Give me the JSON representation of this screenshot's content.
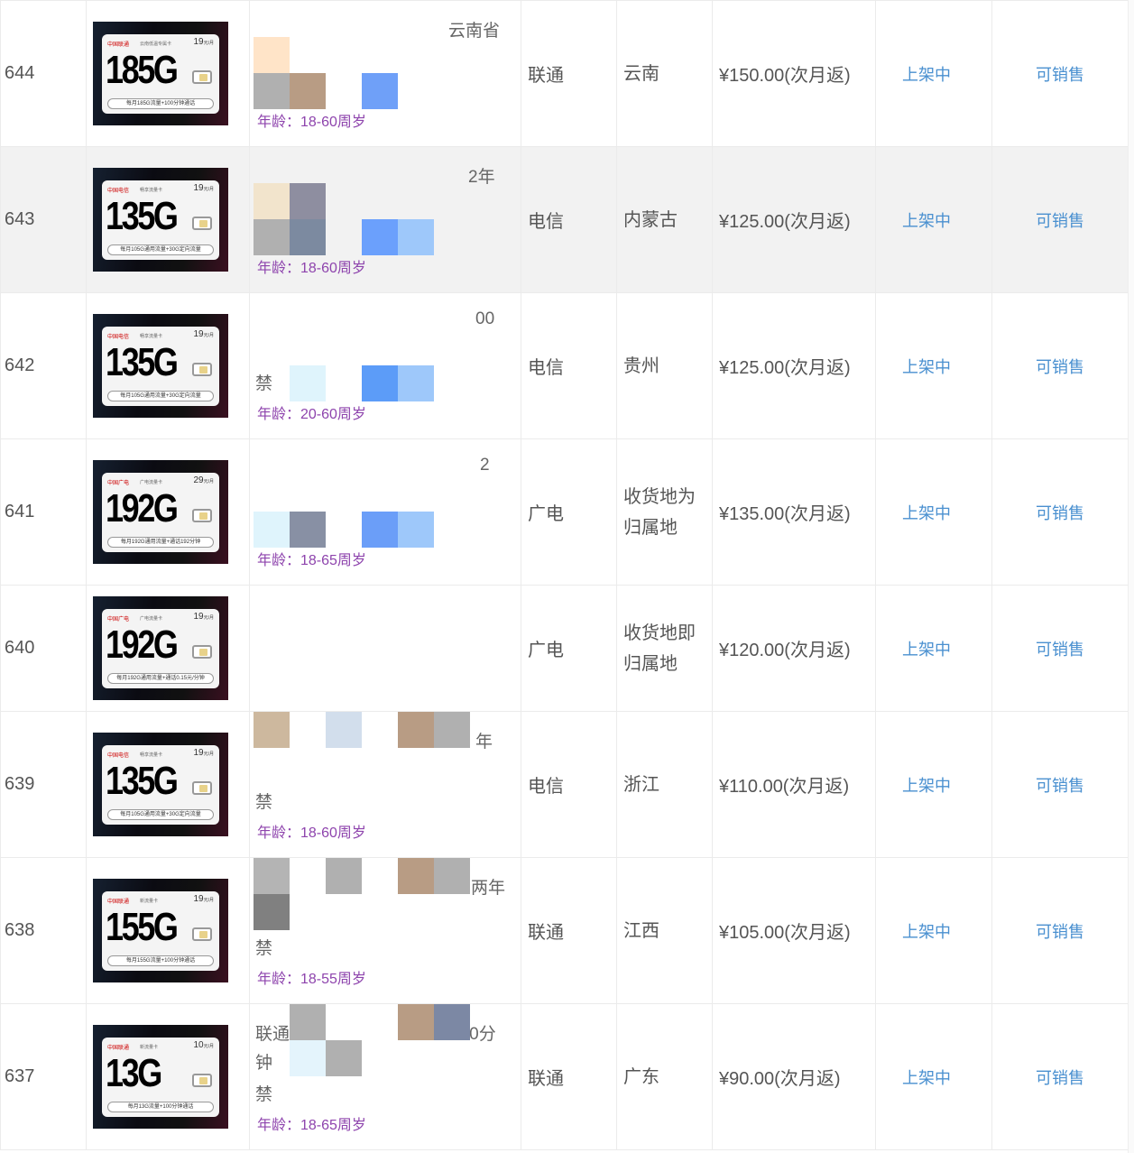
{
  "rows": [
    {
      "id": "644",
      "card": {
        "logo": "中国联通",
        "tag": "云南低温专属卡",
        "fee": "19",
        "unit": "元/月",
        "gb": "185G",
        "footer": "每月185G流量+100分钟通话"
      },
      "desc": {
        "fragments": [
          "云南省"
        ],
        "age": "年龄：18-60周岁"
      },
      "carrier": "联通",
      "region": "云南",
      "price": "¥150.00(次月返)",
      "status": "上架中",
      "sale": "可销售"
    },
    {
      "id": "643",
      "card": {
        "logo": "中国电信",
        "tag": "畅享流量卡",
        "fee": "19",
        "unit": "元/月",
        "gb": "135G",
        "footer": "每月105G通用流量+30G定向流量"
      },
      "desc": {
        "fragments": [
          "2年"
        ],
        "age": "年龄：18-60周岁"
      },
      "carrier": "电信",
      "region": "内蒙古",
      "price": "¥125.00(次月返)",
      "status": "上架中",
      "sale": "可销售"
    },
    {
      "id": "642",
      "card": {
        "logo": "中国电信",
        "tag": "畅享流量卡",
        "fee": "19",
        "unit": "元/月",
        "gb": "135G",
        "footer": "每月105G通用流量+30G定向流量"
      },
      "desc": {
        "fragments": [
          "00",
          "禁"
        ],
        "age": "年龄：20-60周岁"
      },
      "carrier": "电信",
      "region": "贵州",
      "price": "¥125.00(次月返)",
      "status": "上架中",
      "sale": "可销售"
    },
    {
      "id": "641",
      "card": {
        "logo": "中国广电",
        "tag": "广电流量卡",
        "fee": "29",
        "unit": "元/月",
        "gb": "192G",
        "footer": "每月192G通用流量+通话192分钟"
      },
      "desc": {
        "fragments": [
          "2"
        ],
        "age": "年龄：18-65周岁"
      },
      "carrier": "广电",
      "region": "收货地为归属地",
      "price": "¥135.00(次月返)",
      "status": "上架中",
      "sale": "可销售"
    },
    {
      "id": "640",
      "card": {
        "logo": "中国广电",
        "tag": "广电流量卡",
        "fee": "19",
        "unit": "元/月",
        "gb": "192G",
        "footer": "每月192G通用流量+通话0.15元/分钟"
      },
      "desc": {
        "fragments": [],
        "age": ""
      },
      "carrier": "广电",
      "region": "收货地即归属地",
      "price": "¥120.00(次月返)",
      "status": "上架中",
      "sale": "可销售"
    },
    {
      "id": "639",
      "card": {
        "logo": "中国电信",
        "tag": "畅享流量卡",
        "fee": "19",
        "unit": "元/月",
        "gb": "135G",
        "footer": "每月105G通用流量+30G定向流量"
      },
      "desc": {
        "fragments": [
          "年",
          "禁"
        ],
        "age": "年龄：18-60周岁"
      },
      "carrier": "电信",
      "region": "浙江",
      "price": "¥110.00(次月返)",
      "status": "上架中",
      "sale": "可销售"
    },
    {
      "id": "638",
      "card": {
        "logo": "中国联通",
        "tag": "新流量卡",
        "fee": "19",
        "unit": "元/月",
        "gb": "155G",
        "footer": "每月155G流量+100分钟通话"
      },
      "desc": {
        "fragments": [
          "两年",
          "禁"
        ],
        "age": "年龄：18-55周岁"
      },
      "carrier": "联通",
      "region": "江西",
      "price": "¥105.00(次月返)",
      "status": "上架中",
      "sale": "可销售"
    },
    {
      "id": "637",
      "card": {
        "logo": "中国联通",
        "tag": "新流量卡",
        "fee": "10",
        "unit": "元/月",
        "gb": "13G",
        "footer": "每月13G流量+100分钟通话"
      },
      "desc": {
        "fragments": [
          "联通",
          "100分",
          "钟",
          "禁"
        ],
        "age": "年龄：18-65周岁"
      },
      "carrier": "联通",
      "region": "广东",
      "price": "¥90.00(次月返)",
      "status": "上架中",
      "sale": "可销售"
    }
  ],
  "colors": {
    "link": "#4a90d0",
    "age": "#8e44ad",
    "alt_row": "#f2f2f2"
  }
}
